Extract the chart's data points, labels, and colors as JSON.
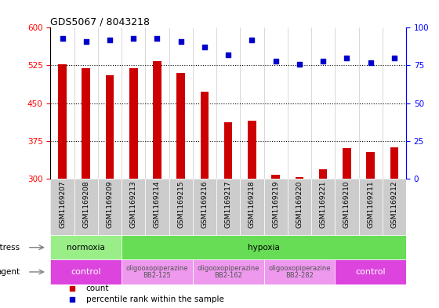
{
  "title": "GDS5067 / 8043218",
  "samples": [
    "GSM1169207",
    "GSM1169208",
    "GSM1169209",
    "GSM1169213",
    "GSM1169214",
    "GSM1169215",
    "GSM1169216",
    "GSM1169217",
    "GSM1169218",
    "GSM1169219",
    "GSM1169220",
    "GSM1169221",
    "GSM1169210",
    "GSM1169211",
    "GSM1169212"
  ],
  "counts": [
    527,
    520,
    505,
    520,
    534,
    510,
    472,
    412,
    415,
    308,
    303,
    318,
    360,
    352,
    362
  ],
  "percentiles": [
    93,
    91,
    92,
    93,
    93,
    91,
    87,
    82,
    92,
    78,
    76,
    78,
    80,
    77,
    80
  ],
  "ylim_left": [
    300,
    600
  ],
  "ylim_right": [
    0,
    100
  ],
  "yticks_left": [
    300,
    375,
    450,
    525,
    600
  ],
  "yticks_right": [
    0,
    25,
    50,
    75,
    100
  ],
  "bar_color": "#cc0000",
  "dot_color": "#0000cc",
  "col_bg_color": "#cccccc",
  "stress_row": [
    {
      "label": "normoxia",
      "start": 0,
      "end": 3,
      "color": "#99ee88"
    },
    {
      "label": "hypoxia",
      "start": 3,
      "end": 15,
      "color": "#66dd55"
    }
  ],
  "agent_row": [
    {
      "label": "control",
      "start": 0,
      "end": 3,
      "color": "#dd44dd",
      "text_color": "#ffffff",
      "fontsize": 8
    },
    {
      "label": "oligooxopiperazine\nBB2-125",
      "start": 3,
      "end": 6,
      "color": "#ee99ee",
      "text_color": "#555555",
      "fontsize": 6
    },
    {
      "label": "oligooxopiperazine\nBB2-162",
      "start": 6,
      "end": 9,
      "color": "#ee99ee",
      "text_color": "#555555",
      "fontsize": 6
    },
    {
      "label": "oligooxopiperazine\nBB2-282",
      "start": 9,
      "end": 12,
      "color": "#ee99ee",
      "text_color": "#555555",
      "fontsize": 6
    },
    {
      "label": "control",
      "start": 12,
      "end": 15,
      "color": "#dd44dd",
      "text_color": "#ffffff",
      "fontsize": 8
    }
  ],
  "legend_items": [
    {
      "label": "count",
      "color": "#cc0000"
    },
    {
      "label": "percentile rank within the sample",
      "color": "#0000cc"
    }
  ]
}
